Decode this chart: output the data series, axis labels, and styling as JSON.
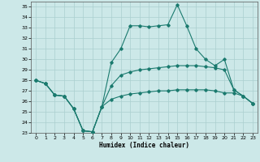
{
  "xlabel": "Humidex (Indice chaleur)",
  "ylabel": "",
  "xlim": [
    -0.5,
    23.5
  ],
  "ylim": [
    23,
    35.5
  ],
  "yticks": [
    23,
    24,
    25,
    26,
    27,
    28,
    29,
    30,
    31,
    32,
    33,
    34,
    35
  ],
  "xticks": [
    0,
    1,
    2,
    3,
    4,
    5,
    6,
    7,
    8,
    9,
    10,
    11,
    12,
    13,
    14,
    15,
    16,
    17,
    18,
    19,
    20,
    21,
    22,
    23
  ],
  "line_color": "#1a7a6e",
  "bg_color": "#cce8e8",
  "grid_color": "#aacfcf",
  "line1": [
    28.0,
    27.7,
    26.6,
    26.5,
    25.3,
    23.2,
    23.1,
    25.5,
    29.7,
    31.0,
    33.2,
    33.2,
    33.1,
    33.2,
    33.3,
    35.2,
    33.2,
    31.0,
    30.0,
    29.4,
    30.0,
    27.1,
    26.5,
    25.8
  ],
  "line2": [
    28.0,
    27.7,
    26.6,
    26.5,
    25.3,
    23.2,
    23.1,
    25.5,
    27.5,
    28.5,
    28.8,
    29.0,
    29.1,
    29.2,
    29.3,
    29.4,
    29.4,
    29.4,
    29.3,
    29.2,
    29.0,
    27.1,
    26.5,
    25.8
  ],
  "line3": [
    28.0,
    27.7,
    26.6,
    26.5,
    25.3,
    23.2,
    23.1,
    25.5,
    26.2,
    26.5,
    26.7,
    26.8,
    26.9,
    27.0,
    27.0,
    27.1,
    27.1,
    27.1,
    27.1,
    27.0,
    26.8,
    26.8,
    26.5,
    25.8
  ]
}
